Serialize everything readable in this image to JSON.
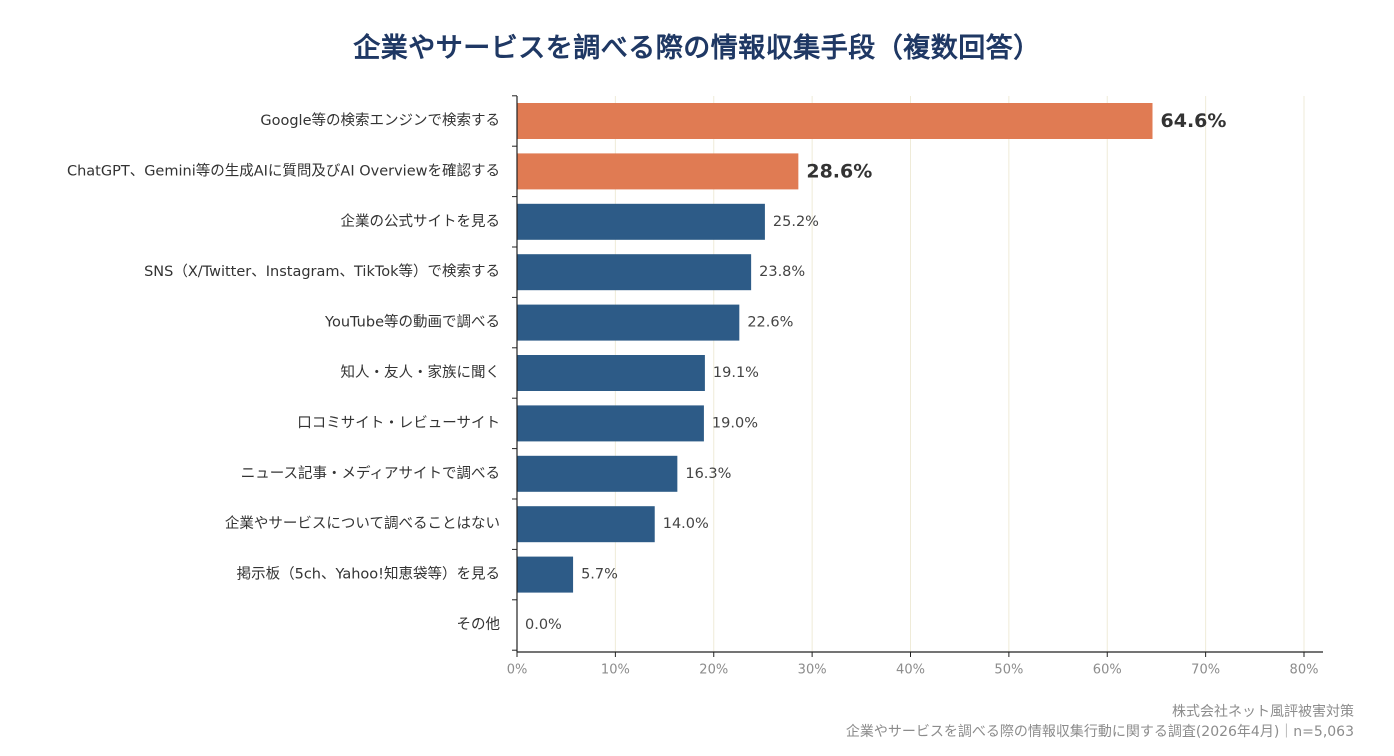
{
  "chart_data": {
    "type": "bar",
    "orientation": "horizontal",
    "title": "企業やサービスを調べる際の情報収集手段（複数回答）",
    "categories": [
      "Google等の検索エンジンで検索する",
      "ChatGPT、Gemini等の生成AIに質問及びAI Overviewを確認する",
      "企業の公式サイトを見る",
      "SNS（X/Twitter、Instagram、TikTok等）で検索する",
      "YouTube等の動画で調べる",
      "知人・友人・家族に聞く",
      "口コミサイト・レビューサイト",
      "ニュース記事・メディアサイトで調べる",
      "企業やサービスについて調べることはない",
      "掲示板（5ch、Yahoo!知恵袋等）を見る",
      "その他"
    ],
    "values": [
      64.6,
      28.6,
      25.2,
      23.8,
      22.6,
      19.1,
      19.0,
      16.3,
      14.0,
      5.7,
      0.0
    ],
    "value_labels": [
      "64.6%",
      "28.6%",
      "25.2%",
      "23.8%",
      "22.6%",
      "19.1%",
      "19.0%",
      "16.3%",
      "14.0%",
      "5.7%",
      "0.0%"
    ],
    "highlighted": [
      true,
      true,
      false,
      false,
      false,
      false,
      false,
      false,
      false,
      false,
      false
    ],
    "xlim": [
      0,
      80
    ],
    "xticks": [
      0,
      10,
      20,
      30,
      40,
      50,
      60,
      70,
      80
    ],
    "xtick_labels": [
      "0%",
      "10%",
      "20%",
      "30%",
      "40%",
      "50%",
      "60%",
      "70%",
      "80%"
    ],
    "xlabel": "",
    "ylabel": "",
    "grid": "vertical",
    "legend": "none",
    "colors": {
      "highlight": "#e07b53",
      "default": "#2d5b87",
      "grid": "#efebd8",
      "title": "#1f3864"
    }
  },
  "source": {
    "line1": "株式会社ネット風評被害対策",
    "line2": "企業やサービスを調べる際の情報収集行動に関する調査(2026年4月)｜n=5,063"
  }
}
